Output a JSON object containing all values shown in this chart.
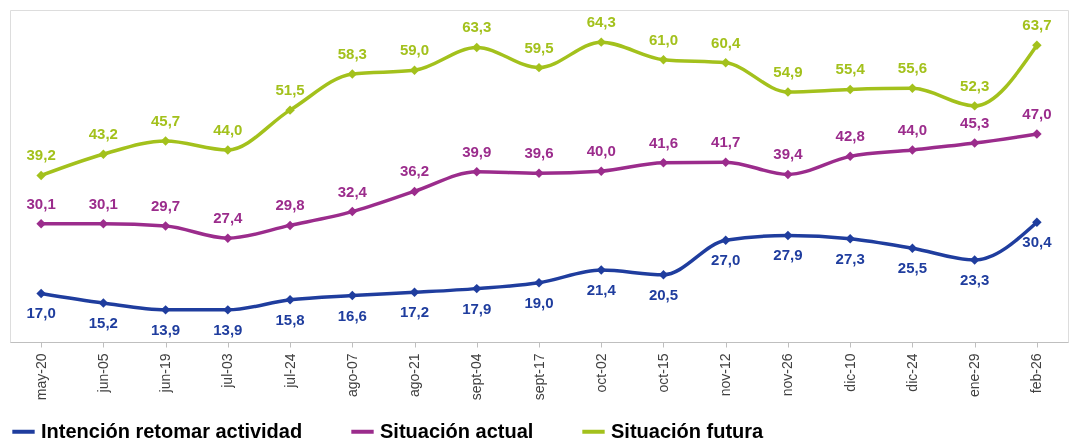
{
  "chart_data": {
    "type": "line",
    "categories": [
      "may-20",
      "jun-05",
      "jun-19",
      "jul-03",
      "jul-24",
      "ago-07",
      "ago-21",
      "sept-04",
      "sept-17",
      "oct-02",
      "oct-15",
      "nov-12",
      "nov-26",
      "dic-10",
      "dic-24",
      "ene-29",
      "feb-26"
    ],
    "series": [
      {
        "name": "Intención retomar actividad",
        "color": "#1f3d9e",
        "values": [
          17.0,
          15.2,
          13.9,
          13.9,
          15.8,
          16.6,
          17.2,
          17.9,
          19.0,
          21.4,
          20.5,
          27.0,
          27.9,
          27.3,
          25.5,
          23.3,
          30.4
        ],
        "value_labels": [
          "17,0",
          "15,2",
          "13,9",
          "13,9",
          "15,8",
          "16,6",
          "17,2",
          "17,9",
          "19,0",
          "21,4",
          "20,5",
          "27,0",
          "27,9",
          "27,3",
          "25,5",
          "23,3",
          "30,4"
        ]
      },
      {
        "name": "Situación actual",
        "color": "#9b2c8c",
        "values": [
          30.1,
          30.1,
          29.7,
          27.4,
          29.8,
          32.4,
          36.2,
          39.9,
          39.6,
          40.0,
          41.6,
          41.7,
          39.4,
          42.8,
          44.0,
          45.3,
          47.0
        ],
        "value_labels": [
          "30,1",
          "30,1",
          "29,7",
          "27,4",
          "29,8",
          "32,4",
          "36,2",
          "39,9",
          "39,6",
          "40,0",
          "41,6",
          "41,7",
          "39,4",
          "42,8",
          "44,0",
          "45,3",
          "47,0"
        ]
      },
      {
        "name": "Situación futura",
        "color": "#a3c11c",
        "values": [
          39.2,
          43.2,
          45.7,
          44.0,
          51.5,
          58.3,
          59.0,
          63.3,
          59.5,
          64.3,
          61.0,
          60.4,
          54.9,
          55.4,
          55.6,
          52.3,
          63.7
        ],
        "value_labels": [
          "39,2",
          "43,2",
          "45,7",
          "44,0",
          "51,5",
          "58,3",
          "59,0",
          "63,3",
          "59,5",
          "64,3",
          "61,0",
          "60,4",
          "54,9",
          "55,4",
          "55,6",
          "52,3",
          "63,7"
        ]
      }
    ],
    "marker": "diamond",
    "line_style": "solid",
    "legend": "bottom",
    "grid": false
  }
}
